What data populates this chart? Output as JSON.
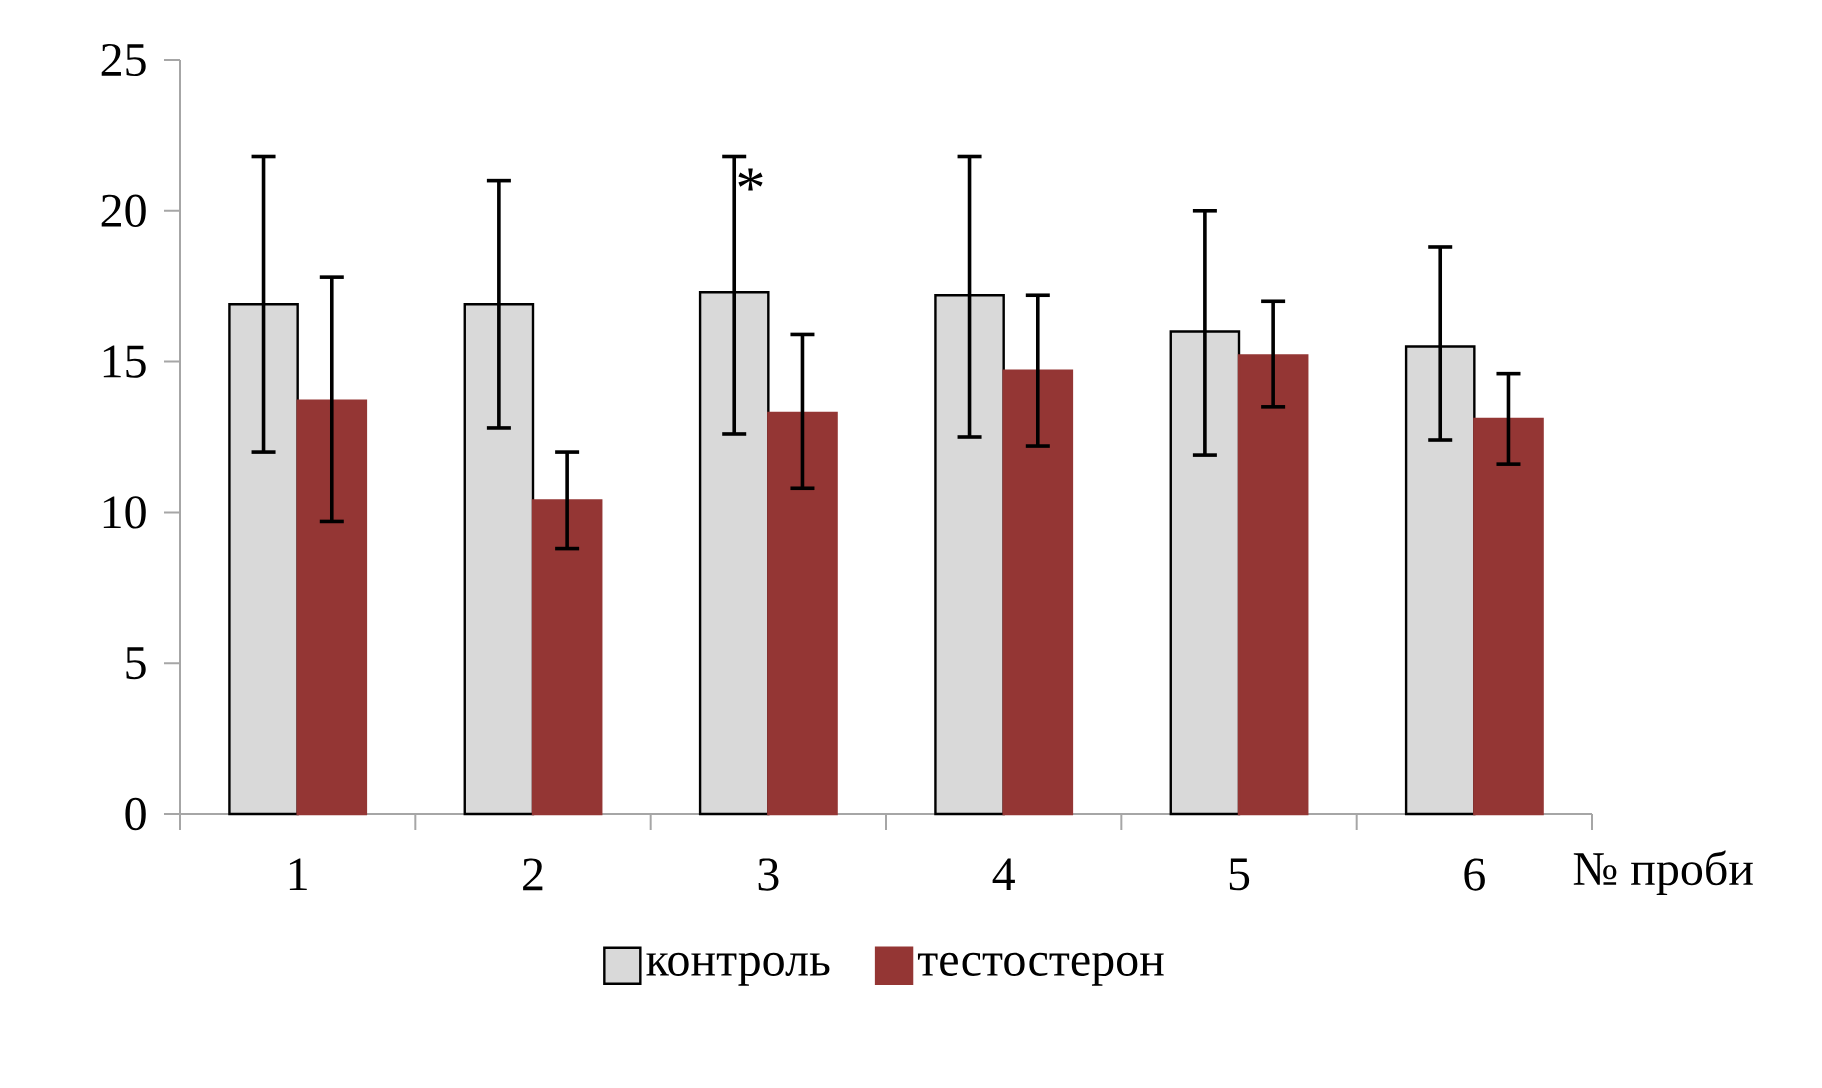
{
  "chart_data": {
    "type": "bar",
    "categories": [
      "1",
      "2",
      "3",
      "4",
      "5",
      "6"
    ],
    "xlabel": "№ проби",
    "series": [
      {
        "name": "контроль",
        "color": "#d9d9d9",
        "values": [
          16.9,
          16.9,
          17.3,
          17.2,
          16.0,
          15.5
        ],
        "errors": [
          [
            12.0,
            21.8
          ],
          [
            12.8,
            21.0
          ],
          [
            12.6,
            21.8
          ],
          [
            12.5,
            21.8
          ],
          [
            11.9,
            20.0
          ],
          [
            12.4,
            18.8
          ]
        ]
      },
      {
        "name": "тестостерон",
        "color": "#943634",
        "values": [
          13.7,
          10.4,
          13.3,
          14.7,
          15.2,
          13.1
        ],
        "errors": [
          [
            9.7,
            17.8
          ],
          [
            8.8,
            12.0
          ],
          [
            10.8,
            15.9
          ],
          [
            12.2,
            17.2
          ],
          [
            13.5,
            17.0
          ],
          [
            11.6,
            14.6
          ]
        ]
      }
    ],
    "ylim": [
      0,
      25
    ],
    "yticks": [
      0,
      5,
      10,
      15,
      20,
      25
    ],
    "annotations": [
      "*"
    ],
    "legend": "bottom",
    "grid": false
  }
}
